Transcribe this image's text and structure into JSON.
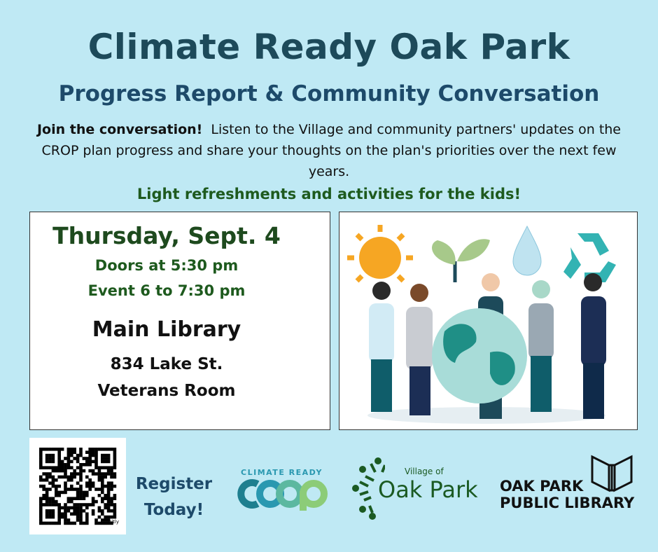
{
  "header": {
    "title": "Climate Ready Oak Park",
    "subtitle": "Progress Report & Community Conversation"
  },
  "description": {
    "lead": "Join the conversation!",
    "body": "Listen to the Village and community partners' updates on the CROP plan progress and share your thoughts on the plan's priorities over the next few years."
  },
  "highlight": "Light refreshments and activities for the kids!",
  "event": {
    "date": "Thursday, Sept. 4",
    "doors": "Doors at 5:30 pm",
    "time": "Event 6 to 7:30 pm",
    "venue": "Main Library",
    "address": "834 Lake St.",
    "room": "Veterans Room"
  },
  "footer": {
    "qr_label": "bitly",
    "register_line1": "Register",
    "register_line2": "Today!",
    "logos": {
      "coop_top": "CLIMATE READY",
      "coop_word": "COOP",
      "village_of": "Village of",
      "village_name": "Oak Park",
      "library_line1": "OAK PARK",
      "library_line2": "PUBLIC LIBRARY"
    }
  },
  "colors": {
    "background": "#bfe9f4",
    "title": "#1d4a5a",
    "green": "#1e5a1e",
    "coop_teal": "#1e7f8f",
    "coop_green": "#8ccc78"
  }
}
